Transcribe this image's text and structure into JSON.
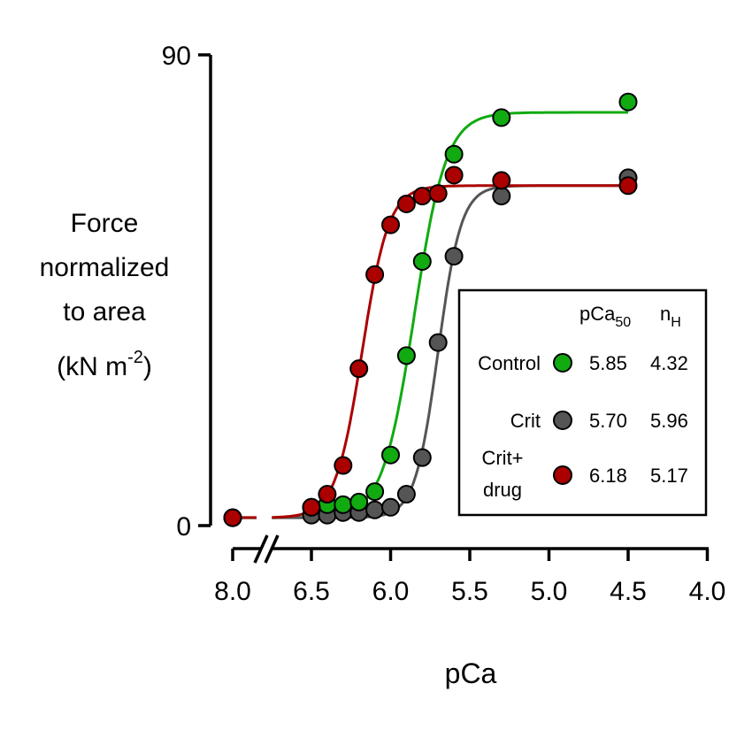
{
  "chart_data": {
    "type": "scatter",
    "title": "",
    "xlabel": "pCa",
    "ylabel_lines": [
      "Force",
      "normalized",
      "to area",
      "(kN m",
      "-2",
      ")"
    ],
    "x_axis": {
      "reversed": true,
      "break_after": "8.0",
      "ticks": [
        "8.0",
        "6.5",
        "6.0",
        "5.5",
        "5.0",
        "4.5",
        "4.0"
      ],
      "range_main": [
        6.5,
        4.0
      ]
    },
    "y_axis": {
      "range": [
        0,
        90
      ],
      "ticks": [
        "0",
        "90"
      ]
    },
    "legend": {
      "placement": "lower-right",
      "header_pca": "pCa",
      "header_pca_sub": "50",
      "header_nh": "n",
      "header_nh_sub": "H"
    },
    "series": [
      {
        "name": "Control",
        "name_lines": [
          "Control"
        ],
        "color": "#11AA11",
        "pCa50": "5.85",
        "nH": "4.32",
        "fit": {
          "min": 1.5,
          "max": 79.0,
          "pCa50": 5.85,
          "nH": 4.32
        },
        "points": [
          {
            "x": 8.0,
            "y": 1.5
          },
          {
            "x": 6.5,
            "y": 3.5
          },
          {
            "x": 6.4,
            "y": 4.0
          },
          {
            "x": 6.3,
            "y": 4.0
          },
          {
            "x": 6.2,
            "y": 4.5
          },
          {
            "x": 6.1,
            "y": 6.5
          },
          {
            "x": 6.0,
            "y": 13.5
          },
          {
            "x": 5.9,
            "y": 32.5
          },
          {
            "x": 5.8,
            "y": 50.5
          },
          {
            "x": 5.6,
            "y": 71.0
          },
          {
            "x": 5.3,
            "y": 78.0
          },
          {
            "x": 4.5,
            "y": 81.0
          }
        ]
      },
      {
        "name": "Crit",
        "name_lines": [
          "Crit"
        ],
        "color": "#555555",
        "pCa50": "5.70",
        "nH": "5.96",
        "fit": {
          "min": 1.5,
          "max": 65.0,
          "pCa50": 5.7,
          "nH": 5.96
        },
        "points": [
          {
            "x": 8.0,
            "y": 1.5
          },
          {
            "x": 6.5,
            "y": 2.0
          },
          {
            "x": 6.4,
            "y": 2.0
          },
          {
            "x": 6.3,
            "y": 2.5
          },
          {
            "x": 6.2,
            "y": 2.5
          },
          {
            "x": 6.1,
            "y": 3.0
          },
          {
            "x": 6.0,
            "y": 3.5
          },
          {
            "x": 5.9,
            "y": 6.0
          },
          {
            "x": 5.8,
            "y": 13.0
          },
          {
            "x": 5.7,
            "y": 35.0
          },
          {
            "x": 5.6,
            "y": 51.5
          },
          {
            "x": 5.3,
            "y": 63.0
          },
          {
            "x": 4.5,
            "y": 66.5
          }
        ]
      },
      {
        "name": "Crit+ drug",
        "name_lines": [
          "Crit+",
          "drug"
        ],
        "color": "#AA0000",
        "pCa50": "6.18",
        "nH": "5.17",
        "fit": {
          "min": 1.5,
          "max": 65.0,
          "pCa50": 6.18,
          "nH": 5.17
        },
        "points": [
          {
            "x": 8.0,
            "y": 1.5
          },
          {
            "x": 6.5,
            "y": 3.5
          },
          {
            "x": 6.4,
            "y": 6.0
          },
          {
            "x": 6.3,
            "y": 11.5
          },
          {
            "x": 6.2,
            "y": 30.0
          },
          {
            "x": 6.1,
            "y": 48.0
          },
          {
            "x": 6.0,
            "y": 57.5
          },
          {
            "x": 5.9,
            "y": 61.5
          },
          {
            "x": 5.8,
            "y": 63.0
          },
          {
            "x": 5.7,
            "y": 63.5
          },
          {
            "x": 5.6,
            "y": 67.0
          },
          {
            "x": 5.3,
            "y": 66.0
          },
          {
            "x": 4.5,
            "y": 65.0
          }
        ]
      }
    ]
  }
}
